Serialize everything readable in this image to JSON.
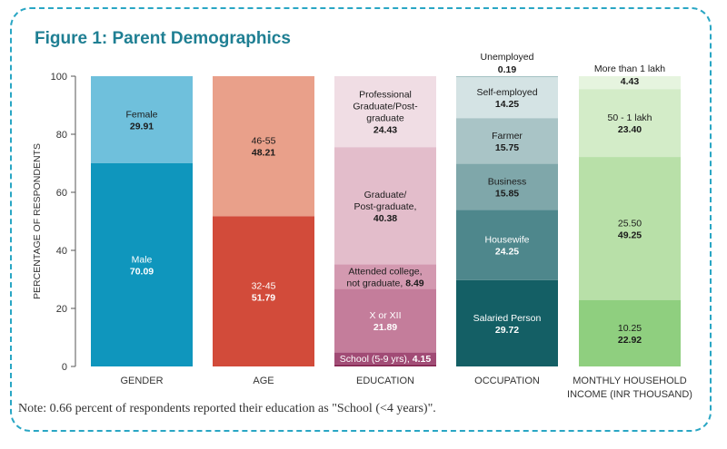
{
  "figure": {
    "title": "Figure 1: Parent Demographics",
    "note": "Note: 0.66 percent of respondents reported their education as \"School (<4 years)\"."
  },
  "chart_data": {
    "type": "bar",
    "stacked": true,
    "ylabel": "PERCENTAGE OF RESPONDENTS",
    "ylim": [
      0,
      100
    ],
    "yticks": [
      0,
      20,
      40,
      60,
      80,
      100
    ],
    "legend": "none",
    "grid": false,
    "categories": [
      {
        "label": [
          "GENDER"
        ],
        "segments": [
          {
            "name": "Male",
            "value": 70.09,
            "color": "#0f96bd",
            "text_color": "#ffffff",
            "lines": [
              "Male"
            ],
            "value_text": "70.09"
          },
          {
            "name": "Female",
            "value": 29.91,
            "color": "#6fc0dc",
            "text_color": "#1a1a1a",
            "lines": [
              "Female"
            ],
            "value_text": "29.91"
          }
        ]
      },
      {
        "label": [
          "AGE"
        ],
        "segments": [
          {
            "name": "32-45",
            "value": 51.79,
            "color": "#d24b3a",
            "text_color": "#ffffff",
            "lines": [
              "32-45"
            ],
            "value_text": "51.79"
          },
          {
            "name": "46-55",
            "value": 48.21,
            "color": "#e9a08a",
            "text_color": "#1a1a1a",
            "lines": [
              "46-55"
            ],
            "value_text": "48.21"
          }
        ]
      },
      {
        "label": [
          "EDUCATION"
        ],
        "segments": [
          {
            "name": "School (<4 years)",
            "value": 0.66,
            "color": "#8a2c57",
            "text_color": "#ffffff",
            "lines": [],
            "value_text": ""
          },
          {
            "name": "School (5-9 yrs)",
            "value": 4.15,
            "color": "#a14b75",
            "text_color": "#ffffff",
            "lines": [],
            "value_text": "",
            "inline_text": "School (5-9 yrs), ",
            "inline_value": "4.15"
          },
          {
            "name": "X or XII",
            "value": 21.89,
            "color": "#c47d9b",
            "text_color": "#ffffff",
            "lines": [
              "X or XII"
            ],
            "value_text": "21.89"
          },
          {
            "name": "Attended college, not graduate",
            "value": 8.49,
            "color": "#d399b0",
            "text_color": "#1a1a1a",
            "lines": [
              "Attended college,"
            ],
            "value_text": "",
            "inline_text": "not graduate, ",
            "inline_value": "8.49"
          },
          {
            "name": "Graduate/ Post-graduate",
            "value": 40.38,
            "color": "#e3bdcb",
            "text_color": "#1a1a1a",
            "lines": [
              "Graduate/",
              "Post-graduate,"
            ],
            "value_text": "40.38"
          },
          {
            "name": "Professional Graduate/Post-graduate",
            "value": 24.43,
            "color": "#f0dde4",
            "text_color": "#1a1a1a",
            "lines": [
              "Professional",
              "Graduate/Post-",
              "graduate"
            ],
            "value_text": "24.43"
          }
        ]
      },
      {
        "label": [
          "OCCUPATION"
        ],
        "segments": [
          {
            "name": "Salaried Person",
            "value": 29.72,
            "color": "#145f65",
            "text_color": "#ffffff",
            "lines": [
              "Salaried Person"
            ],
            "value_text": "29.72"
          },
          {
            "name": "Housewife",
            "value": 24.25,
            "color": "#4e878c",
            "text_color": "#ffffff",
            "lines": [
              "Housewife"
            ],
            "value_text": "24.25"
          },
          {
            "name": "Business",
            "value": 15.85,
            "color": "#7fa7aa",
            "text_color": "#1a1a1a",
            "lines": [
              "Business"
            ],
            "value_text": "15.85"
          },
          {
            "name": "Farmer",
            "value": 15.75,
            "color": "#a9c4c6",
            "text_color": "#1a1a1a",
            "lines": [
              "Farmer"
            ],
            "value_text": "15.75"
          },
          {
            "name": "Self-employed",
            "value": 14.25,
            "color": "#d4e3e4",
            "text_color": "#1a1a1a",
            "lines": [
              "Self-employed"
            ],
            "value_text": "14.25"
          },
          {
            "name": "Unemployed",
            "value": 0.19,
            "color": "#7fa7aa",
            "text_color": "#1a1a1a",
            "lines": [],
            "value_text": "",
            "outside_lines": [
              "Unemployed"
            ],
            "outside_value": "0.19"
          }
        ]
      },
      {
        "label": [
          "MONTHLY HOUSEHOLD",
          "INCOME (INR THOUSAND)"
        ],
        "segments": [
          {
            "name": "10.25",
            "value": 22.92,
            "color": "#8fcf7f",
            "text_color": "#1a1a1a",
            "lines": [
              "10.25"
            ],
            "value_text": "22.92"
          },
          {
            "name": "25.50",
            "value": 49.25,
            "color": "#b8e0a8",
            "text_color": "#1a1a1a",
            "lines": [
              "25.50"
            ],
            "value_text": "49.25"
          },
          {
            "name": "50 - 1 lakh",
            "value": 23.4,
            "color": "#d3ecc8",
            "text_color": "#1a1a1a",
            "lines": [
              "50 - 1 lakh"
            ],
            "value_text": "23.40"
          },
          {
            "name": "More than 1 lakh",
            "value": 4.43,
            "color": "#e6f4df",
            "text_color": "#1a1a1a",
            "lines": [],
            "value_text": "",
            "outside_lines": [
              "More than 1 lakh"
            ],
            "outside_value": "4.43"
          }
        ]
      }
    ]
  }
}
